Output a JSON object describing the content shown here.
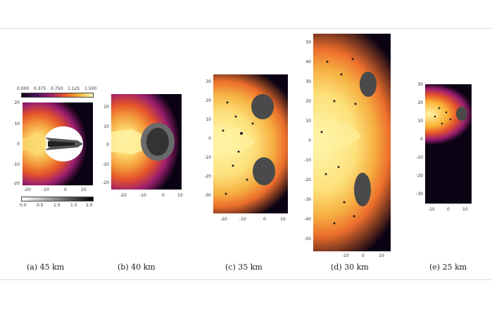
{
  "colorbar_top": {
    "ticks": [
      "0.000",
      "0.375",
      "0.750",
      "1.125",
      "1.500"
    ]
  },
  "colorbar_bottom": {
    "ticks": [
      "0.0",
      "0.5",
      "1.0",
      "1.5",
      "2.0"
    ]
  },
  "colors": {
    "cold": "#0b0214",
    "mid": "#9b1e6e",
    "warm": "#e5542a",
    "hot": "#f9b234",
    "core": "#fff8b0"
  },
  "panels": [
    {
      "caption": "(a) 45 km",
      "yticks": [
        "20",
        "10",
        "0",
        "-10",
        "-20"
      ],
      "xticks": [
        "-20",
        "-10",
        "0",
        "10"
      ]
    },
    {
      "caption": "(b) 40 km",
      "yticks": [
        "20",
        "10",
        "0",
        "-10",
        "-20"
      ],
      "xticks": [
        "-20",
        "-10",
        "0",
        "10"
      ]
    },
    {
      "caption": "(c) 35 km",
      "yticks": [
        "30",
        "20",
        "10",
        "0",
        "-10",
        "-20",
        "-30"
      ],
      "xticks": [
        "-20",
        "-10",
        "0",
        "10"
      ]
    },
    {
      "caption": "(d) 30 km",
      "yticks": [
        "50",
        "40",
        "30",
        "20",
        "10",
        "0",
        "-10",
        "-20",
        "-30",
        "-40",
        "-50"
      ],
      "xticks": [
        "-10",
        "0",
        "10"
      ]
    },
    {
      "caption": "(e) 25 km",
      "yticks": [
        "30",
        "20",
        "10",
        "0",
        "-10",
        "-20",
        "-30"
      ],
      "xticks": [
        "-10",
        "0",
        "10"
      ]
    }
  ]
}
